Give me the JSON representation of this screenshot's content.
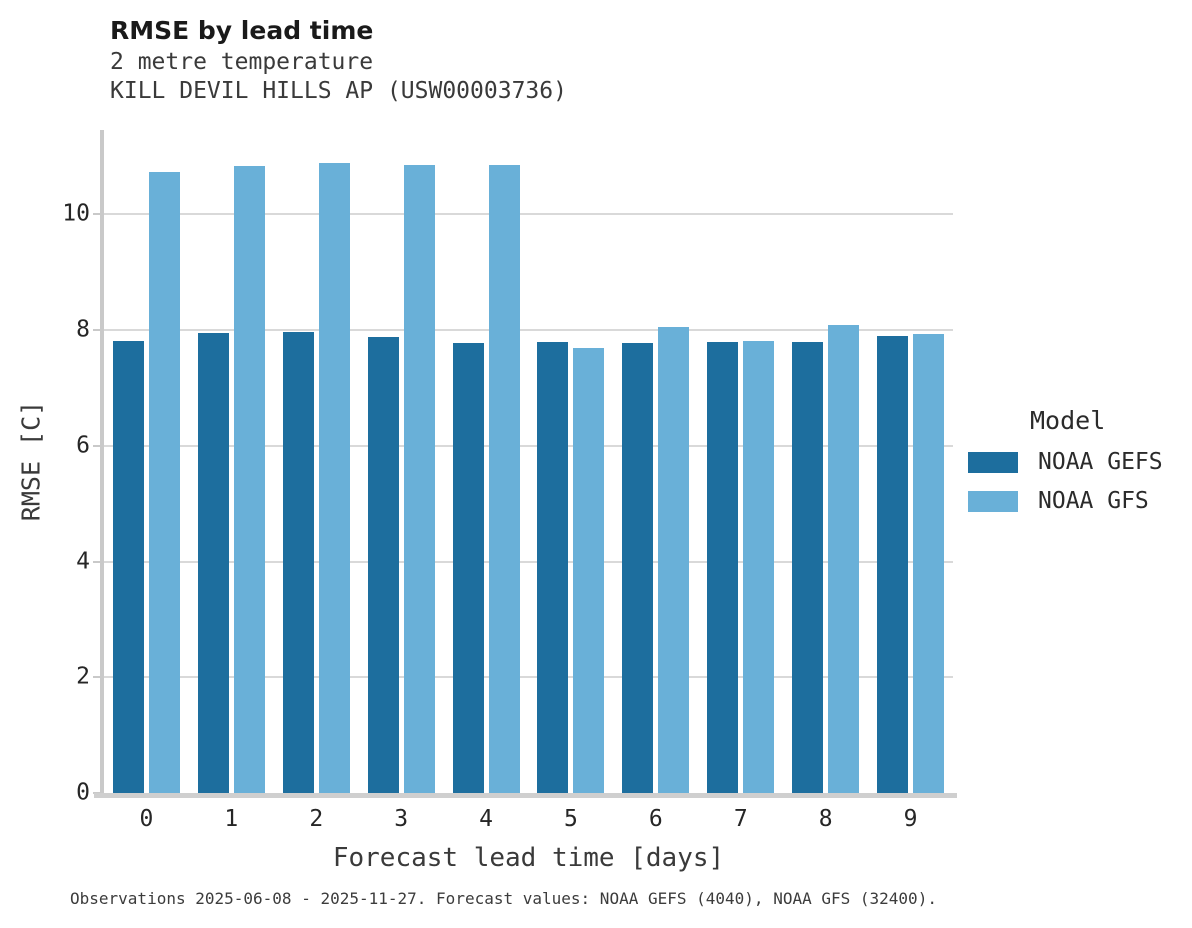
{
  "header": {
    "title": "RMSE by lead time",
    "subtitle": "2 metre temperature",
    "station": "KILL DEVIL HILLS AP (USW00003736)"
  },
  "legend": {
    "title": "Model",
    "entries": [
      {
        "label": "NOAA GEFS",
        "color": "#1d6e9e"
      },
      {
        "label": "NOAA GFS",
        "color": "#69b0d8"
      }
    ]
  },
  "footer": {
    "text": "Observations 2025-06-08 - 2025-11-27. Forecast values: NOAA GEFS (4040), NOAA GFS (32400)."
  },
  "colors": {
    "series_dark": "#1d6e9e",
    "series_light": "#69b0d8",
    "gridline": "#d9d9d9",
    "spine": "#c9c9c9"
  },
  "chart_data": {
    "type": "bar",
    "title": "RMSE by lead time",
    "subtitle": [
      "2 metre temperature",
      "KILL DEVIL HILLS AP (USW00003736)"
    ],
    "categories": [
      "0",
      "1",
      "2",
      "3",
      "4",
      "5",
      "6",
      "7",
      "8",
      "9"
    ],
    "series": [
      {
        "name": "NOAA GEFS",
        "color": "#1d6e9e",
        "values": [
          7.82,
          7.95,
          7.97,
          7.88,
          7.78,
          7.8,
          7.77,
          7.79,
          7.79,
          7.9
        ]
      },
      {
        "name": "NOAA GFS",
        "color": "#69b0d8",
        "values": [
          10.74,
          10.84,
          10.89,
          10.86,
          10.86,
          7.7,
          8.06,
          7.82,
          8.09,
          7.93
        ]
      }
    ],
    "xlabel": "Forecast lead time [days]",
    "ylabel": "RMSE [C]",
    "ylim": [
      0,
      11.46
    ],
    "yticks": [
      0,
      2,
      4,
      6,
      8,
      10
    ],
    "grid": "horizontal",
    "legend_position": "right",
    "legend_title": "Model"
  }
}
